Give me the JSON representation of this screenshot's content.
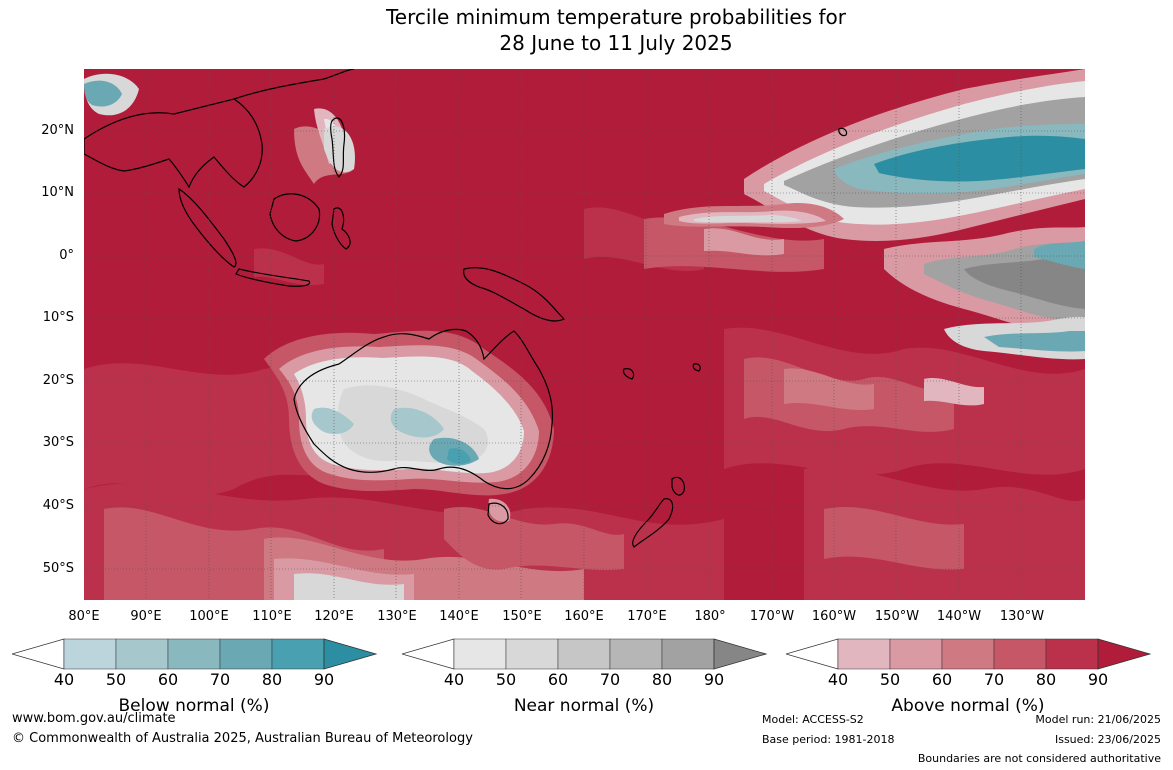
{
  "title": {
    "line1": "Tercile minimum temperature probabilities for",
    "line2": "28 June to 11 July 2025"
  },
  "map": {
    "lat_labels": [
      "20°N",
      "10°N",
      "0°",
      "10°S",
      "20°S",
      "30°S",
      "40°S",
      "50°S"
    ],
    "lon_labels": [
      "80°E",
      "90°E",
      "100°E",
      "110°E",
      "120°E",
      "130°E",
      "140°E",
      "150°E",
      "160°E",
      "170°E",
      "180°",
      "170°W",
      "160°W",
      "150°W",
      "140°W",
      "130°W"
    ],
    "lat_range": [
      -55,
      30
    ],
    "lon_range": [
      80,
      240
    ],
    "dominant_category": "Above normal ≥ 90%"
  },
  "colorbars": [
    {
      "title": "Below normal (%)",
      "ticks": [
        "40",
        "50",
        "60",
        "70",
        "80",
        "90"
      ],
      "colors": [
        "#bcd5dc",
        "#a6c8cd",
        "#8ab8bf",
        "#6aa8b4",
        "#48a0b0",
        "#2c8ea2"
      ]
    },
    {
      "title": "Near normal (%)",
      "ticks": [
        "40",
        "50",
        "60",
        "70",
        "80",
        "90"
      ],
      "colors": [
        "#e6e6e6",
        "#d8d8d8",
        "#c6c6c6",
        "#b6b6b6",
        "#a2a2a2",
        "#868686"
      ]
    },
    {
      "title": "Above normal (%)",
      "ticks": [
        "40",
        "50",
        "60",
        "70",
        "80",
        "90"
      ],
      "colors": [
        "#e2b6bf",
        "#d99aa4",
        "#cf7983",
        "#c55766",
        "#bb314b",
        "#b01c3a"
      ]
    }
  ],
  "footer": {
    "website": "www.bom.gov.au/climate",
    "copyright": "© Commonwealth of Australia 2025, Australian Bureau of Meteorology",
    "model": "Model: ACCESS-S2",
    "base_period": "Base period: 1981-2018",
    "model_run": "Model run: 21/06/2025",
    "issued": "Issued: 23/06/2025",
    "disclaimer": "Boundaries are not considered authoritative"
  },
  "colors": {
    "above_90": "#b01c3a",
    "above_80": "#bb314b",
    "above_70": "#c55766",
    "above_60": "#cf7983",
    "above_50": "#d99aa4",
    "above_40": "#e2b6bf",
    "near_light": "#e6e6e6",
    "near_dark": "#868686",
    "below_90": "#2c8ea2",
    "below_60": "#8ab8bf"
  }
}
